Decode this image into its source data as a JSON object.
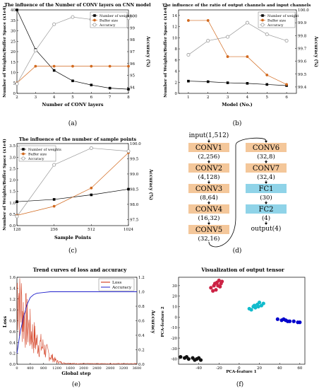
{
  "chart_data": [
    {
      "id": "a",
      "type": "line",
      "title": "The influence of the Number of CONV layers on CNN model",
      "xlabel": "Number of CONV layers",
      "ylabel": "Number of Weights/Buffer Space (x1e4)",
      "y2label": "Accuracy (%)",
      "xlim": [
        2,
        8
      ],
      "ylim": [
        0,
        40
      ],
      "y2lim": [
        93.5,
        100.5
      ],
      "xticks": [
        "2",
        "3",
        "4",
        "5",
        "6",
        "7",
        "8"
      ],
      "yticks": [
        "0",
        "5",
        "10",
        "15",
        "20",
        "25",
        "30",
        "35",
        "40"
      ],
      "y2ticks": [
        "94",
        "95",
        "96",
        "97",
        "98",
        "99",
        "100"
      ],
      "x": [
        2,
        3,
        4,
        5,
        6,
        7,
        8
      ],
      "series": [
        {
          "name": "Number of weights",
          "axis": "left",
          "color": "#000000",
          "marker": "square",
          "values": [
            40,
            21,
            11,
            6,
            4,
            2.5,
            2
          ]
        },
        {
          "name": "Buffer size",
          "axis": "left",
          "color": "#d2691e",
          "marker": "circle",
          "values": [
            5,
            13,
            13,
            13,
            13,
            13,
            13
          ]
        },
        {
          "name": "Accuracy",
          "axis": "right",
          "color": "#999999",
          "marker": "open-circle",
          "values": [
            94.3,
            97.1,
            99.3,
            99.9,
            99.7,
            99.8,
            99.8
          ]
        }
      ],
      "legend": "top-right",
      "label": "(a)"
    },
    {
      "id": "b",
      "type": "line",
      "title": "The influence of the ratio of  output channels  and input channels",
      "xlabel": "Model (No.)",
      "ylabel": "Number of Weights/Buffer Space (x1e4)",
      "y2label": "Accuracy (%)",
      "xlim": [
        0.5,
        6.5
      ],
      "ylim": [
        0,
        15
      ],
      "y2lim": [
        99.35,
        100.0
      ],
      "xticks": [
        "1",
        "2",
        "3",
        "4",
        "5",
        "6"
      ],
      "yticks": [
        "0",
        "2",
        "4",
        "6",
        "8",
        "10",
        "12",
        "14"
      ],
      "y2ticks": [
        "99.4",
        "99.5",
        "99.6",
        "99.7",
        "99.8",
        "99.9",
        "100.0"
      ],
      "x": [
        1,
        2,
        3,
        4,
        5,
        6
      ],
      "series": [
        {
          "name": "Number of weight",
          "axis": "left",
          "color": "#000000",
          "marker": "square",
          "values": [
            2.2,
            2.1,
            1.9,
            1.8,
            1.6,
            1.4
          ]
        },
        {
          "name": "Buffer size",
          "axis": "left",
          "color": "#d2691e",
          "marker": "circle",
          "values": [
            13.1,
            13.1,
            6.6,
            6.6,
            3.3,
            1.6
          ]
        },
        {
          "name": "Accuracy",
          "axis": "right",
          "color": "#999999",
          "marker": "open-circle",
          "values": [
            99.65,
            99.76,
            99.79,
            99.9,
            99.81,
            99.76
          ]
        }
      ],
      "legend": "top-right",
      "label": "(b)"
    },
    {
      "id": "c",
      "type": "line",
      "title": "The influence of the number of  sample points",
      "xlabel": "Sample Points",
      "ylabel": "Number of Weights/Buffer Space (x1e4)",
      "y2label": "Accuracy (%)",
      "xlim": [
        128,
        1024
      ],
      "ylim": [
        0,
        3.6
      ],
      "y2lim": [
        97.3,
        100.0
      ],
      "xticks": [
        "128",
        "256",
        "512",
        "1024"
      ],
      "yticks": [
        "0.0",
        "0.5",
        "1.0",
        "1.5",
        "2.0",
        "2.5",
        "3.0",
        "3.5"
      ],
      "y2ticks": [
        "97.5",
        "98.0",
        "98.5",
        "99.0",
        "99.5",
        "100.0"
      ],
      "x": [
        "128",
        "256",
        "512",
        "1024"
      ],
      "series": [
        {
          "name": "Number of weights",
          "axis": "left",
          "color": "#000000",
          "marker": "square",
          "values": [
            1.05,
            1.15,
            1.35,
            1.6
          ]
        },
        {
          "name": "Buffer size",
          "axis": "left",
          "color": "#d2691e",
          "marker": "circle",
          "values": [
            0.45,
            0.85,
            1.65,
            3.2
          ]
        },
        {
          "name": "Accuracy",
          "axis": "right",
          "color": "#999999",
          "marker": "open-circle",
          "values": [
            97.6,
            99.3,
            99.85,
            99.75
          ]
        }
      ],
      "legend": "top-left",
      "label": "(c)"
    },
    {
      "id": "e",
      "type": "line",
      "title": "Trend curves of loss and accuracy",
      "xlabel": "Global step",
      "ylabel": "Loss",
      "y2label": "Accuracy",
      "xlim": [
        0,
        3600
      ],
      "ylim": [
        0,
        1.6
      ],
      "y2lim": [
        0,
        1.2
      ],
      "xticks": [
        "0",
        "400",
        "800",
        "1200",
        "1600",
        "2000",
        "2400",
        "2800",
        "3200",
        "3600"
      ],
      "yticks": [
        "0.0",
        "0.2",
        "0.4",
        "0.6",
        "0.8",
        "1.0",
        "1.2",
        "1.4",
        "1.6"
      ],
      "y2ticks": [
        "0.0",
        "0.2",
        "0.4",
        "0.6",
        "0.8",
        "1.0",
        "1.2"
      ],
      "series": [
        {
          "name": "Loss",
          "axis": "left",
          "color": "#cc2200",
          "x": [
            0,
            60,
            120,
            200,
            300,
            400,
            500,
            600,
            700,
            800,
            900,
            1000,
            1100,
            1200,
            1400,
            1800,
            2400,
            3000,
            3600
          ],
          "values": [
            1.4,
            1.3,
            1.1,
            0.9,
            0.75,
            0.6,
            0.5,
            0.4,
            0.35,
            0.3,
            0.22,
            0.15,
            0.1,
            0.05,
            0.02,
            0.01,
            0.01,
            0.01,
            0.01
          ]
        },
        {
          "name": "Accuracy",
          "axis": "right",
          "color": "#2222cc",
          "x": [
            0,
            100,
            200,
            300,
            400,
            500,
            600,
            800,
            1000,
            1200,
            1600,
            2000,
            2400,
            2800,
            3200,
            3600
          ],
          "values": [
            0.15,
            0.45,
            0.65,
            0.82,
            0.92,
            0.96,
            0.98,
            0.99,
            1.0,
            1.0,
            1.0,
            1.0,
            1.0,
            1.0,
            1.0,
            1.0
          ]
        }
      ],
      "legend": "top-right",
      "label": "(e)"
    },
    {
      "id": "f",
      "type": "scatter",
      "title": "Visualization of output tensor",
      "xlabel": "PCA-feature 1",
      "ylabel": "PCA-feature 2",
      "xlim": [
        -60,
        65
      ],
      "ylim": [
        -45,
        38
      ],
      "xticks": [
        "-40",
        "-20",
        "0",
        "20",
        "40",
        "60"
      ],
      "yticks": [
        "-40",
        "-30",
        "-20",
        "-10",
        "0",
        "10",
        "20",
        "30"
      ],
      "series": [
        {
          "color": "#cc2244",
          "points": [
            [
              -28,
              28
            ],
            [
              -25,
              30
            ],
            [
              -22,
              33
            ],
            [
              -20,
              35
            ],
            [
              -18,
              32
            ],
            [
              -23,
              26
            ],
            [
              -26,
              25
            ],
            [
              -21,
              30
            ],
            [
              -19,
              29
            ],
            [
              -24,
              32
            ],
            [
              -17,
              34
            ]
          ]
        },
        {
          "color": "#11bbcc",
          "points": [
            [
              10,
              8
            ],
            [
              14,
              10
            ],
            [
              18,
              12
            ],
            [
              20,
              14
            ],
            [
              22,
              11
            ],
            [
              16,
              9
            ],
            [
              12,
              7
            ],
            [
              19,
              10
            ],
            [
              24,
              13
            ],
            [
              15,
              11
            ]
          ]
        },
        {
          "color": "#0000cc",
          "points": [
            [
              38,
              -2
            ],
            [
              42,
              -3
            ],
            [
              46,
              -3
            ],
            [
              50,
              -4
            ],
            [
              54,
              -4
            ],
            [
              58,
              -5
            ],
            [
              44,
              -2
            ],
            [
              48,
              -4
            ],
            [
              60,
              -5
            ]
          ]
        },
        {
          "color": "#111111",
          "points": [
            [
              -58,
              -38
            ],
            [
              -54,
              -39
            ],
            [
              -50,
              -40
            ],
            [
              -46,
              -39
            ],
            [
              -42,
              -40
            ],
            [
              -38,
              -41
            ],
            [
              -52,
              -38
            ],
            [
              -44,
              -41
            ],
            [
              -40,
              -39
            ]
          ]
        }
      ],
      "label": "(f)"
    }
  ],
  "diagram": {
    "label": "(d)",
    "input": "input(1,512)",
    "left": [
      {
        "name": "CONV1",
        "shape": "(2,256)"
      },
      {
        "name": "CONV2",
        "shape": "(4,128)"
      },
      {
        "name": "CONV3",
        "shape": "(8,64)"
      },
      {
        "name": "CONV4",
        "shape": "(16,32)"
      },
      {
        "name": "CONV5",
        "shape": "(32,16)"
      }
    ],
    "right": [
      {
        "name": "CONV6",
        "shape": "(32,8)",
        "kind": "conv"
      },
      {
        "name": "CONV7",
        "shape": "(32,4)",
        "kind": "conv"
      },
      {
        "name": "FC1",
        "shape": "(30)",
        "kind": "fc"
      },
      {
        "name": "FC2",
        "shape": "(4)",
        "kind": "fc"
      }
    ],
    "output": "output(4)",
    "colors": {
      "conv": "#f4c79a",
      "fc": "#8fd3e8"
    }
  }
}
